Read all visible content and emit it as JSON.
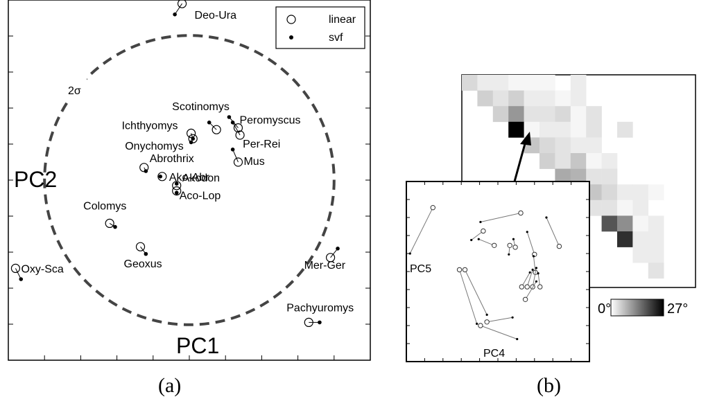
{
  "chart_data": [
    {
      "type": "scatter",
      "panel_label": "(a)",
      "xlabel": "PC1",
      "ylabel": "PC2",
      "xlim": [
        0,
        10
      ],
      "ylim": [
        0,
        10
      ],
      "ring_label": "2σ",
      "ring": {
        "cx": 5.0,
        "cy": 5.0,
        "r": 4.0
      },
      "legend": {
        "position": "top-right",
        "items": [
          "linear",
          "svf"
        ]
      },
      "points": [
        {
          "name": "Deo-Ura",
          "linear": [
            4.8,
            9.9
          ],
          "svf": [
            4.6,
            9.6
          ]
        },
        {
          "name": "Scotinomys",
          "linear": [
            5.75,
            6.4
          ],
          "svf": [
            5.55,
            6.6
          ]
        },
        {
          "name": "Peromyscus",
          "linear": [
            6.35,
            6.45
          ],
          "svf": [
            6.1,
            6.75
          ]
        },
        {
          "name": "Ichthyomys",
          "linear": [
            5.05,
            6.3
          ],
          "svf": [
            5.1,
            6.15
          ]
        },
        {
          "name": "Per-Rei",
          "linear": [
            6.4,
            6.25
          ],
          "svf": [
            6.2,
            6.6
          ]
        },
        {
          "name": "Onychomys",
          "linear": [
            5.1,
            6.15
          ],
          "svf": [
            5.05,
            6.05
          ]
        },
        {
          "name": "Mus",
          "linear": [
            6.35,
            5.5
          ],
          "svf": [
            6.2,
            5.85
          ]
        },
        {
          "name": "Abrothrix",
          "linear": [
            3.75,
            5.35
          ],
          "svf": [
            3.8,
            5.25
          ]
        },
        {
          "name": "Ako-Abr",
          "linear": [
            4.25,
            5.1
          ],
          "svf": [
            4.2,
            5.1
          ]
        },
        {
          "name": "Akodon",
          "linear": [
            4.65,
            4.85
          ],
          "svf": [
            4.65,
            4.9
          ]
        },
        {
          "name": "Aco-Lop",
          "linear": [
            4.65,
            4.7
          ],
          "svf": [
            4.65,
            4.65
          ]
        },
        {
          "name": "Colomys",
          "linear": [
            2.8,
            3.8
          ],
          "svf": [
            2.95,
            3.7
          ]
        },
        {
          "name": "Geoxus",
          "linear": [
            3.65,
            3.15
          ],
          "svf": [
            3.8,
            2.95
          ]
        },
        {
          "name": "Oxy-Sca",
          "linear": [
            0.2,
            2.55
          ],
          "svf": [
            0.35,
            2.25
          ]
        },
        {
          "name": "Mer-Ger",
          "linear": [
            8.9,
            2.85
          ],
          "svf": [
            9.1,
            3.1
          ]
        },
        {
          "name": "Pachyuromys",
          "linear": [
            8.3,
            1.05
          ],
          "svf": [
            8.6,
            1.05
          ]
        }
      ]
    },
    {
      "type": "heatmap",
      "panel_label": "(b)",
      "colorbar": {
        "min_label": "0°",
        "max_label": "27°",
        "min": 0,
        "max": 27
      },
      "values": [
        [
          4,
          2,
          2,
          1,
          1,
          1,
          0,
          2,
          0,
          0,
          0,
          0,
          0,
          0,
          0
        ],
        [
          0,
          5,
          3,
          5,
          2,
          2,
          1,
          2,
          0,
          0,
          0,
          0,
          0,
          0,
          0
        ],
        [
          0,
          0,
          5,
          11,
          3,
          3,
          4,
          1,
          3,
          0,
          0,
          0,
          0,
          0,
          0
        ],
        [
          0,
          0,
          0,
          27,
          1,
          2,
          2,
          1,
          3,
          0,
          3,
          0,
          0,
          0,
          0
        ],
        [
          0,
          0,
          0,
          0,
          6,
          4,
          3,
          2,
          2,
          0,
          0,
          0,
          0,
          0,
          0
        ],
        [
          0,
          0,
          0,
          0,
          0,
          5,
          3,
          6,
          1,
          2,
          0,
          0,
          0,
          0,
          0
        ],
        [
          0,
          0,
          0,
          0,
          0,
          0,
          9,
          8,
          3,
          3,
          0,
          0,
          0,
          0,
          0
        ],
        [
          0,
          0,
          0,
          0,
          0,
          0,
          0,
          11,
          6,
          4,
          2,
          2,
          1,
          0,
          0
        ],
        [
          0,
          0,
          0,
          0,
          0,
          0,
          0,
          0,
          3,
          3,
          1,
          2,
          0,
          0,
          0
        ],
        [
          0,
          0,
          0,
          0,
          0,
          0,
          0,
          0,
          0,
          18,
          12,
          1,
          2,
          0,
          0
        ],
        [
          0,
          0,
          0,
          0,
          0,
          0,
          0,
          0,
          0,
          0,
          22,
          2,
          2,
          0,
          0
        ],
        [
          0,
          0,
          0,
          0,
          0,
          0,
          0,
          0,
          0,
          0,
          0,
          2,
          2,
          0,
          0
        ],
        [
          0,
          0,
          0,
          0,
          0,
          0,
          0,
          0,
          0,
          0,
          0,
          0,
          3,
          0,
          0
        ]
      ],
      "highlight_cell": [
        3,
        3
      ]
    },
    {
      "type": "scatter",
      "inset": true,
      "xlabel": "PC4",
      "ylabel": "PC5",
      "xlim": [
        0,
        10
      ],
      "ylim": [
        0,
        10
      ],
      "pairs": [
        {
          "linear": [
            1.45,
            8.55
          ],
          "svf": [
            0.2,
            6.0
          ]
        },
        {
          "linear": [
            6.25,
            8.25
          ],
          "svf": [
            4.05,
            7.75
          ]
        },
        {
          "linear": [
            8.35,
            6.4
          ],
          "svf": [
            7.65,
            8.0
          ]
        },
        {
          "linear": [
            4.2,
            7.25
          ],
          "svf": [
            3.55,
            6.75
          ]
        },
        {
          "linear": [
            4.8,
            6.45
          ],
          "svf": [
            3.95,
            6.8
          ]
        },
        {
          "linear": [
            5.65,
            6.45
          ],
          "svf": [
            5.6,
            5.95
          ]
        },
        {
          "linear": [
            5.95,
            6.35
          ],
          "svf": [
            5.85,
            6.8
          ]
        },
        {
          "linear": [
            7.0,
            5.95
          ],
          "svf": [
            6.6,
            7.2
          ]
        },
        {
          "linear": [
            7.05,
            4.95
          ],
          "svf": [
            6.95,
            5.85
          ]
        },
        {
          "linear": [
            2.9,
            5.1
          ],
          "svf": [
            3.85,
            2.1
          ]
        },
        {
          "linear": [
            3.2,
            5.1
          ],
          "svf": [
            4.4,
            2.6
          ]
        },
        {
          "linear": [
            6.3,
            4.15
          ],
          "svf": [
            6.75,
            4.95
          ]
        },
        {
          "linear": [
            6.6,
            4.15
          ],
          "svf": [
            6.9,
            5.1
          ]
        },
        {
          "linear": [
            6.9,
            4.15
          ],
          "svf": [
            7.1,
            5.2
          ]
        },
        {
          "linear": [
            7.3,
            4.15
          ],
          "svf": [
            7.2,
            4.9
          ]
        },
        {
          "linear": [
            6.5,
            3.45
          ],
          "svf": [
            7.1,
            4.45
          ]
        },
        {
          "linear": [
            4.4,
            2.2
          ],
          "svf": [
            5.8,
            2.45
          ]
        },
        {
          "linear": [
            4.05,
            2.0
          ],
          "svf": [
            6.05,
            1.25
          ]
        }
      ]
    }
  ]
}
